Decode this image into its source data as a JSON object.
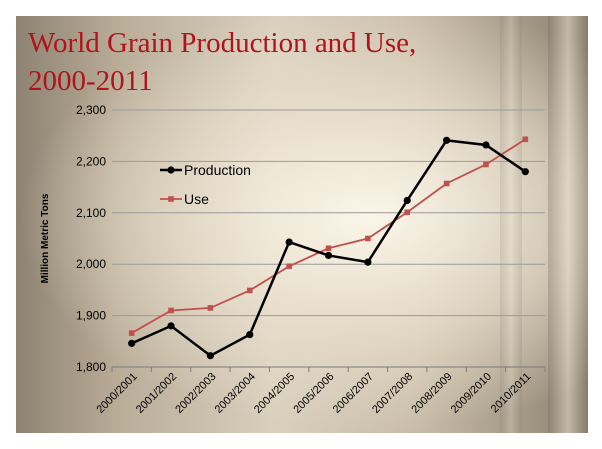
{
  "title_line1": "World Grain Production and Use,",
  "title_line2": "2000-2011",
  "chart_data": {
    "type": "line",
    "title": "World Grain Production and Use, 2000-2011",
    "ylabel": "Million Metric Tons",
    "xlabel": "",
    "ylim": [
      1800,
      2300
    ],
    "yticks": [
      1800,
      1900,
      2000,
      2100,
      2200,
      2300
    ],
    "ytick_labels": [
      "1,800",
      "1,900",
      "2,000",
      "2,100",
      "2,200",
      "2,300"
    ],
    "categories": [
      "2000/2001",
      "2001/2002",
      "2002/2003",
      "2003/2004",
      "2004/2005",
      "2005/2006",
      "2006/2007",
      "2007/2008",
      "2008/2009",
      "2009/2010",
      "2010/2011"
    ],
    "grid": true,
    "legend_position": "inside-upper-left",
    "series": [
      {
        "name": "Production",
        "color": "#000000",
        "marker": "circle",
        "values": [
          1846,
          1880,
          1822,
          1863,
          2043,
          2017,
          2004,
          2124,
          2241,
          2232,
          2180
        ]
      },
      {
        "name": "Use",
        "color": "#c0504d",
        "marker": "square",
        "values": [
          1866,
          1910,
          1915,
          1949,
          1996,
          2031,
          2050,
          2101,
          2157,
          2194,
          2243
        ]
      }
    ]
  }
}
